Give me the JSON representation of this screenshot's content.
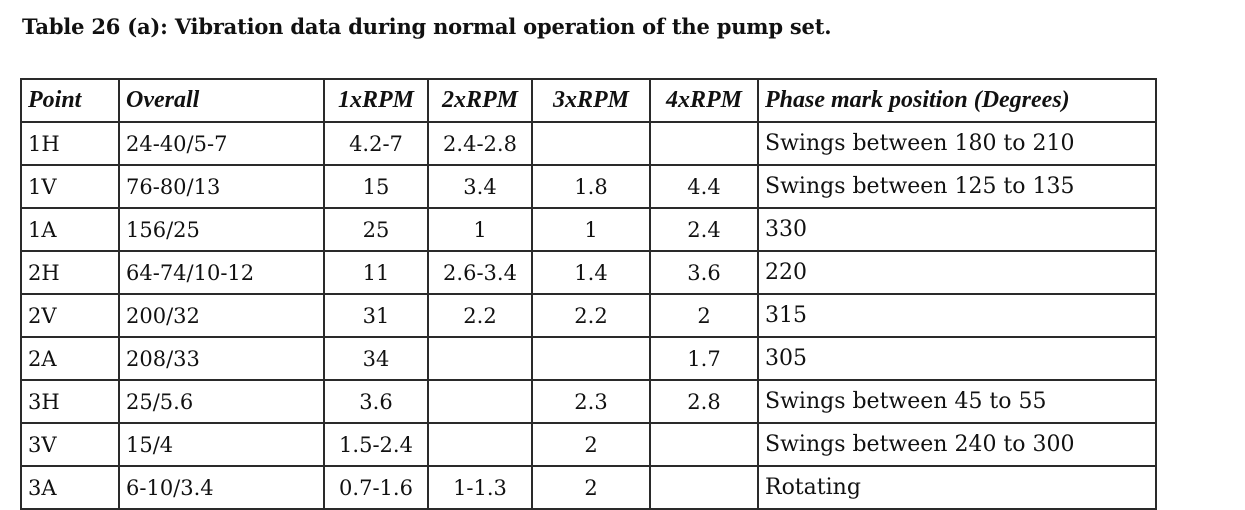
{
  "caption": "Table 26 (a): Vibration data during normal operation of the pump set.",
  "table": {
    "headers": [
      "Point",
      "Overall",
      "1xRPM",
      "2xRPM",
      "3xRPM",
      "4xRPM",
      "Phase mark position (Degrees)"
    ],
    "rows": [
      [
        "1H",
        "24-40/5-7",
        "4.2-7",
        "2.4-2.8",
        "",
        "",
        "Swings between 180 to 210"
      ],
      [
        "1V",
        "76-80/13",
        "15",
        "3.4",
        "1.8",
        "4.4",
        "Swings between 125 to 135"
      ],
      [
        "1A",
        "156/25",
        "25",
        "1",
        "1",
        "2.4",
        "330"
      ],
      [
        "2H",
        "64-74/10-12",
        "11",
        "2.6-3.4",
        "1.4",
        "3.6",
        "220"
      ],
      [
        "2V",
        "200/32",
        "31",
        "2.2",
        "2.2",
        "2",
        "315"
      ],
      [
        "2A",
        "208/33",
        "34",
        "",
        "",
        "1.7",
        "305"
      ],
      [
        "3H",
        "25/5.6",
        "3.6",
        "",
        "2.3",
        "2.8",
        "Swings between 45 to 55"
      ],
      [
        "3V",
        "15/4",
        "1.5-2.4",
        "",
        "2",
        "",
        "Swings between 240 to 300"
      ],
      [
        "3A",
        "6-10/3.4",
        "0.7-1.6",
        "1-1.3",
        "2",
        "",
        "Rotating"
      ]
    ]
  }
}
